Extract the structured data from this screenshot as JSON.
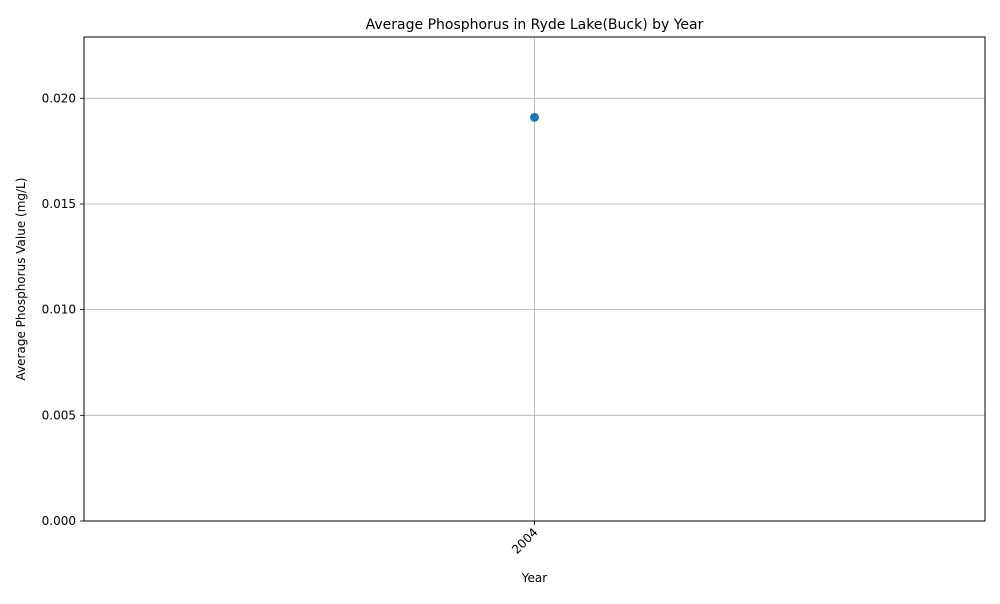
{
  "chart_data": {
    "type": "line",
    "title": "Average Phosphorus in Ryde Lake(Buck) by Year",
    "xlabel": "Year",
    "ylabel": "Average Phosphorus Value (mg/L)",
    "categories": [
      "2004"
    ],
    "series": [
      {
        "values": [
          0.0191
        ],
        "color": "#1f77b4",
        "marker": "circle"
      }
    ],
    "ylim": [
      0,
      0.0229
    ],
    "yticks": [
      0.0,
      0.005,
      0.01,
      0.015,
      0.02
    ],
    "ytick_labels": [
      "0.000",
      "0.005",
      "0.010",
      "0.015",
      "0.020"
    ],
    "xtick_labels": [
      "2004"
    ],
    "grid": true,
    "legend": "none",
    "colors": {
      "grid": "#b0b0b0",
      "axis": "#000000",
      "series": "#1f77b4"
    }
  }
}
